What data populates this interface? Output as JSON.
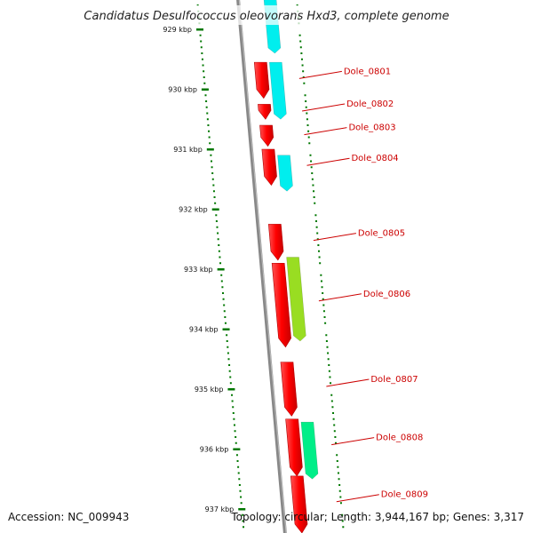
{
  "title": "Candidatus Desulfococcus oleovorans Hxd3, complete genome",
  "footer": {
    "accession": "Accession: NC_009943",
    "summary": "Topology: circular; Length: 3,944,167 bp; Genes: 3,317"
  },
  "scale": {
    "unit": "kbp",
    "ticks": [
      {
        "kbp": 929,
        "label": "929 kbp"
      },
      {
        "kbp": 930,
        "label": "930 kbp"
      },
      {
        "kbp": 931,
        "label": "931 kbp"
      },
      {
        "kbp": 932,
        "label": "932 kbp"
      },
      {
        "kbp": 933,
        "label": "933 kbp"
      },
      {
        "kbp": 934,
        "label": "934 kbp"
      },
      {
        "kbp": 935,
        "label": "935 kbp"
      },
      {
        "kbp": 936,
        "label": "936 kbp"
      },
      {
        "kbp": 937,
        "label": "937 kbp"
      }
    ]
  },
  "genes": [
    {
      "name": "Dole_0801",
      "start_kbp": 929.55,
      "end_kbp": 930.15
    },
    {
      "name": "Dole_0802",
      "start_kbp": 930.25,
      "end_kbp": 930.5
    },
    {
      "name": "Dole_0803",
      "start_kbp": 930.6,
      "end_kbp": 930.95
    },
    {
      "name": "Dole_0804",
      "start_kbp": 931.0,
      "end_kbp": 931.6
    },
    {
      "name": "Dole_0805",
      "start_kbp": 932.25,
      "end_kbp": 932.85
    },
    {
      "name": "Dole_0806",
      "start_kbp": 932.9,
      "end_kbp": 934.3
    },
    {
      "name": "Dole_0807",
      "start_kbp": 934.55,
      "end_kbp": 935.45
    },
    {
      "name": "Dole_0808",
      "start_kbp": 935.5,
      "end_kbp": 936.45
    },
    {
      "name": "Dole_0809",
      "start_kbp": 936.45,
      "end_kbp": 937.4
    }
  ],
  "features": [
    {
      "track": "cog",
      "start_kbp": 928.5,
      "end_kbp": 929.4,
      "color": "#00eeee"
    },
    {
      "track": "cog",
      "start_kbp": 929.55,
      "end_kbp": 930.5,
      "color": "#00eeee"
    },
    {
      "track": "cog",
      "start_kbp": 931.1,
      "end_kbp": 931.7,
      "color": "#00eeee"
    },
    {
      "track": "cog",
      "start_kbp": 932.8,
      "end_kbp": 934.2,
      "color": "#99dd22"
    },
    {
      "track": "cog",
      "start_kbp": 935.55,
      "end_kbp": 936.5,
      "color": "#00ee88"
    }
  ],
  "colors": {
    "gene": "#ff0000",
    "gene_label": "#cc0000",
    "tick": "#007700",
    "backbone": "#888888"
  }
}
